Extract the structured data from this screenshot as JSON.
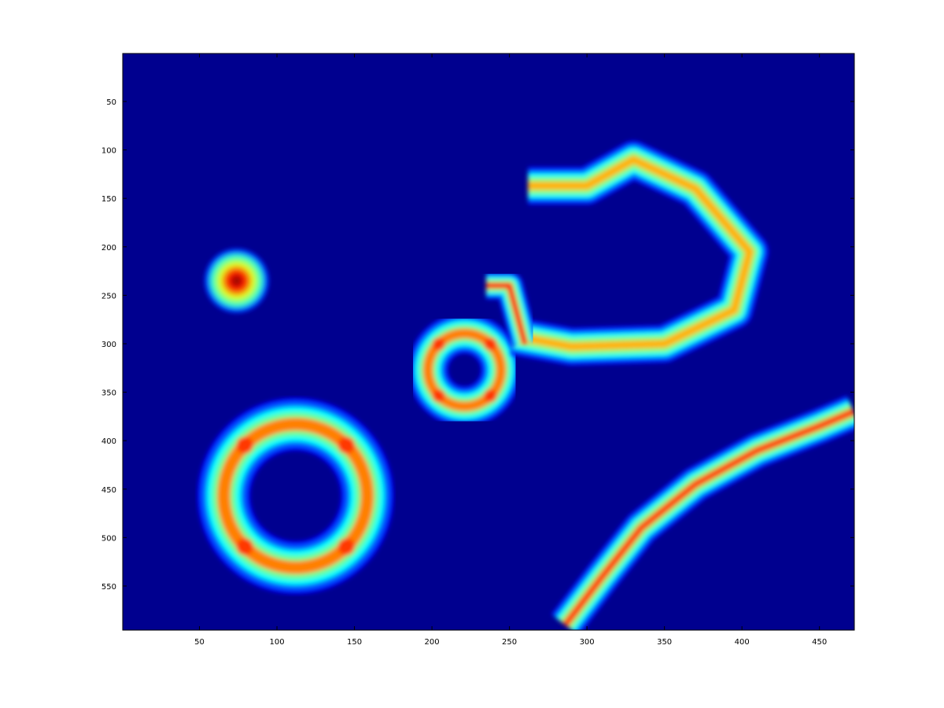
{
  "chart_data": {
    "type": "heatmap",
    "title": "",
    "xlabel": "",
    "ylabel": "",
    "colormap": "jet",
    "background_color": "#00008f",
    "grid": false,
    "xlim": [
      0.5,
      472.5
    ],
    "ylim": [
      0.5,
      595.5
    ],
    "y_reversed": true,
    "xticks": [
      50,
      100,
      150,
      200,
      250,
      300,
      350,
      400,
      450
    ],
    "yticks": [
      50,
      100,
      150,
      200,
      250,
      300,
      350,
      400,
      450,
      500,
      550
    ],
    "xtick_labels": [
      "50",
      "100",
      "150",
      "200",
      "250",
      "300",
      "350",
      "400",
      "450"
    ],
    "ytick_labels": [
      "50",
      "100",
      "150",
      "200",
      "250",
      "300",
      "350",
      "400",
      "450",
      "500",
      "550"
    ],
    "features": [
      {
        "shape": "blob",
        "center": [
          74,
          235
        ],
        "radius": 26,
        "peak": 1.0
      },
      {
        "shape": "ring",
        "center": [
          221,
          327
        ],
        "inner_radius": 13,
        "outer_radius": 45,
        "peak": 0.75
      },
      {
        "shape": "ring",
        "center": [
          112,
          457
        ],
        "inner_radius": 36,
        "outer_radius": 78,
        "peak": 0.75
      },
      {
        "shape": "hook",
        "points": [
          [
            262,
            137
          ],
          [
            300,
            137
          ],
          [
            330,
            110
          ],
          [
            370,
            140
          ],
          [
            405,
            205
          ],
          [
            395,
            265
          ],
          [
            350,
            300
          ],
          [
            290,
            303
          ],
          [
            253,
            292
          ]
        ],
        "width": 30,
        "peak": 0.7
      },
      {
        "shape": "bar",
        "points": [
          [
            235,
            240
          ],
          [
            250,
            240
          ],
          [
            255,
            270
          ],
          [
            260,
            300
          ]
        ],
        "width": 22,
        "peak": 0.85
      },
      {
        "shape": "arc",
        "points": [
          [
            286,
            590
          ],
          [
            310,
            540
          ],
          [
            335,
            490
          ],
          [
            370,
            445
          ],
          [
            410,
            410
          ],
          [
            450,
            385
          ],
          [
            472,
            370
          ]
        ],
        "width": 28,
        "peak": 0.8
      }
    ]
  }
}
